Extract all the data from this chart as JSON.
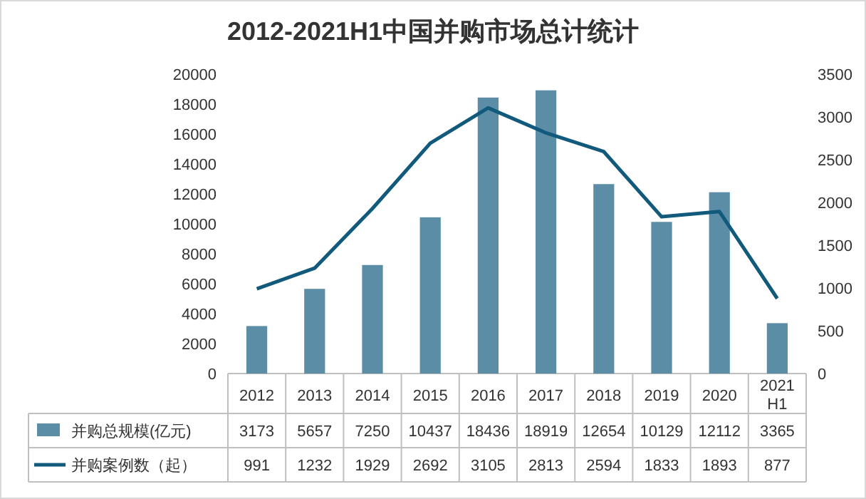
{
  "chart_data": {
    "type": "bar",
    "title": "2012-2021H1中国并购市场总计统计",
    "categories": [
      "2012",
      "2013",
      "2014",
      "2015",
      "2016",
      "2017",
      "2018",
      "2019",
      "2020",
      "2021 H1"
    ],
    "series": [
      {
        "name": "并购总规模(亿元)",
        "color": "#5b8ea6",
        "values": [
          3173,
          5657,
          7250,
          10437,
          18436,
          18919,
          12654,
          10129,
          12112,
          3365
        ]
      },
      {
        "name": "并购案例数（起）",
        "type": "line",
        "axis": "y2",
        "color": "#125a7c",
        "values": [
          991,
          1232,
          1929,
          2692,
          3105,
          2813,
          2594,
          1833,
          1893,
          877
        ]
      }
    ],
    "ylim": [
      0,
      20000
    ],
    "yticks": [
      0,
      2000,
      4000,
      6000,
      8000,
      10000,
      12000,
      14000,
      16000,
      18000,
      20000
    ],
    "y2lim": [
      0,
      3500
    ],
    "y2ticks": [
      0,
      500,
      1000,
      1500,
      2000,
      2500,
      3000,
      3500
    ],
    "data_labels": true,
    "legend": "bottom",
    "grid": false,
    "marker": "none",
    "line_style": "solid"
  }
}
